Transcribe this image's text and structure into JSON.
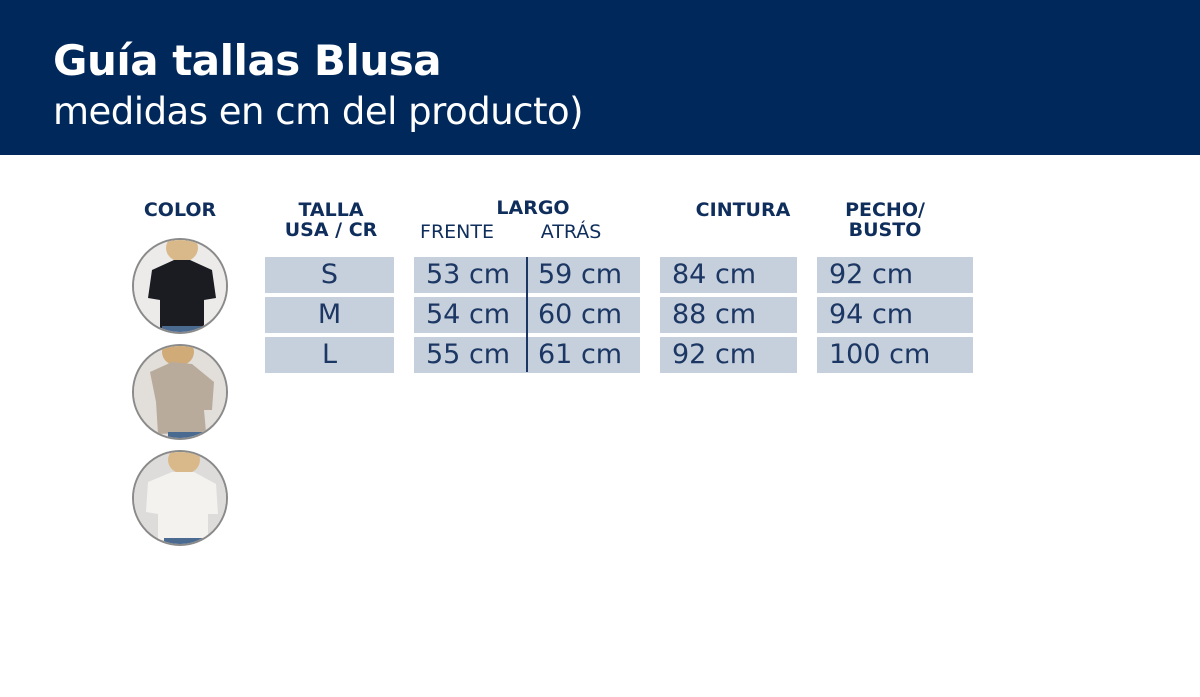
{
  "header": {
    "title": "Guía tallas Blusa",
    "subtitle": "medidas en cm del producto)"
  },
  "columns": {
    "color": "COLOR",
    "talla": [
      "TALLA",
      "USA / CR"
    ],
    "largo": "LARGO",
    "frente": "FRENTE",
    "atras": "ATRÁS",
    "cintura": "CINTURA",
    "pecho": [
      "PECHO/",
      "BUSTO"
    ]
  },
  "colors": [
    {
      "name": "black-blouse",
      "swatch": "#1a1c22"
    },
    {
      "name": "beige-blouse",
      "swatch": "#b8ab9b"
    },
    {
      "name": "white-blouse",
      "swatch": "#f1efec"
    }
  ],
  "rows": [
    {
      "talla": "S",
      "frente": "53 cm",
      "atras": "59 cm",
      "cintura": "84 cm",
      "pecho": "92 cm"
    },
    {
      "talla": "M",
      "frente": "54 cm",
      "atras": "60 cm",
      "cintura": "88 cm",
      "pecho": "94 cm"
    },
    {
      "talla": "L",
      "frente": "55 cm",
      "atras": "61 cm",
      "cintura": "92 cm",
      "pecho": "100 cm"
    }
  ],
  "theme": {
    "header_bg": "#00285b",
    "cell_bg": "#c6d0dd",
    "text": "#1c3763"
  }
}
